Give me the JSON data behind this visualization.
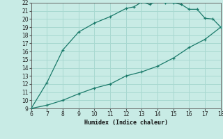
{
  "xlabel": "Humidex (Indice chaleur)",
  "ylabel": "",
  "background_color": "#c8ebe5",
  "grid_color": "#a8d8d0",
  "line_color": "#1a7a6a",
  "xlim": [
    6,
    18
  ],
  "ylim": [
    9,
    22
  ],
  "xticks": [
    6,
    7,
    8,
    9,
    10,
    11,
    12,
    13,
    14,
    15,
    16,
    17,
    18
  ],
  "yticks": [
    9,
    10,
    11,
    12,
    13,
    14,
    15,
    16,
    17,
    18,
    19,
    20,
    21,
    22
  ],
  "upper_curve_x": [
    6,
    7,
    8,
    9,
    10,
    11,
    12,
    12.5,
    13,
    13.5,
    14,
    14.5,
    15,
    15.5,
    16,
    16.5,
    17,
    17.5,
    18
  ],
  "upper_curve_y": [
    9.0,
    12.2,
    16.2,
    18.4,
    19.5,
    20.3,
    21.3,
    21.5,
    22.1,
    21.8,
    22.2,
    22.0,
    22.0,
    21.8,
    21.2,
    21.2,
    20.1,
    20.0,
    19.0
  ],
  "lower_curve_x": [
    6,
    7,
    8,
    9,
    10,
    11,
    12,
    13,
    14,
    15,
    16,
    17,
    18
  ],
  "lower_curve_y": [
    9.0,
    9.4,
    10.0,
    10.8,
    11.5,
    12.0,
    13.0,
    13.5,
    14.2,
    15.2,
    16.5,
    17.5,
    19.0
  ]
}
